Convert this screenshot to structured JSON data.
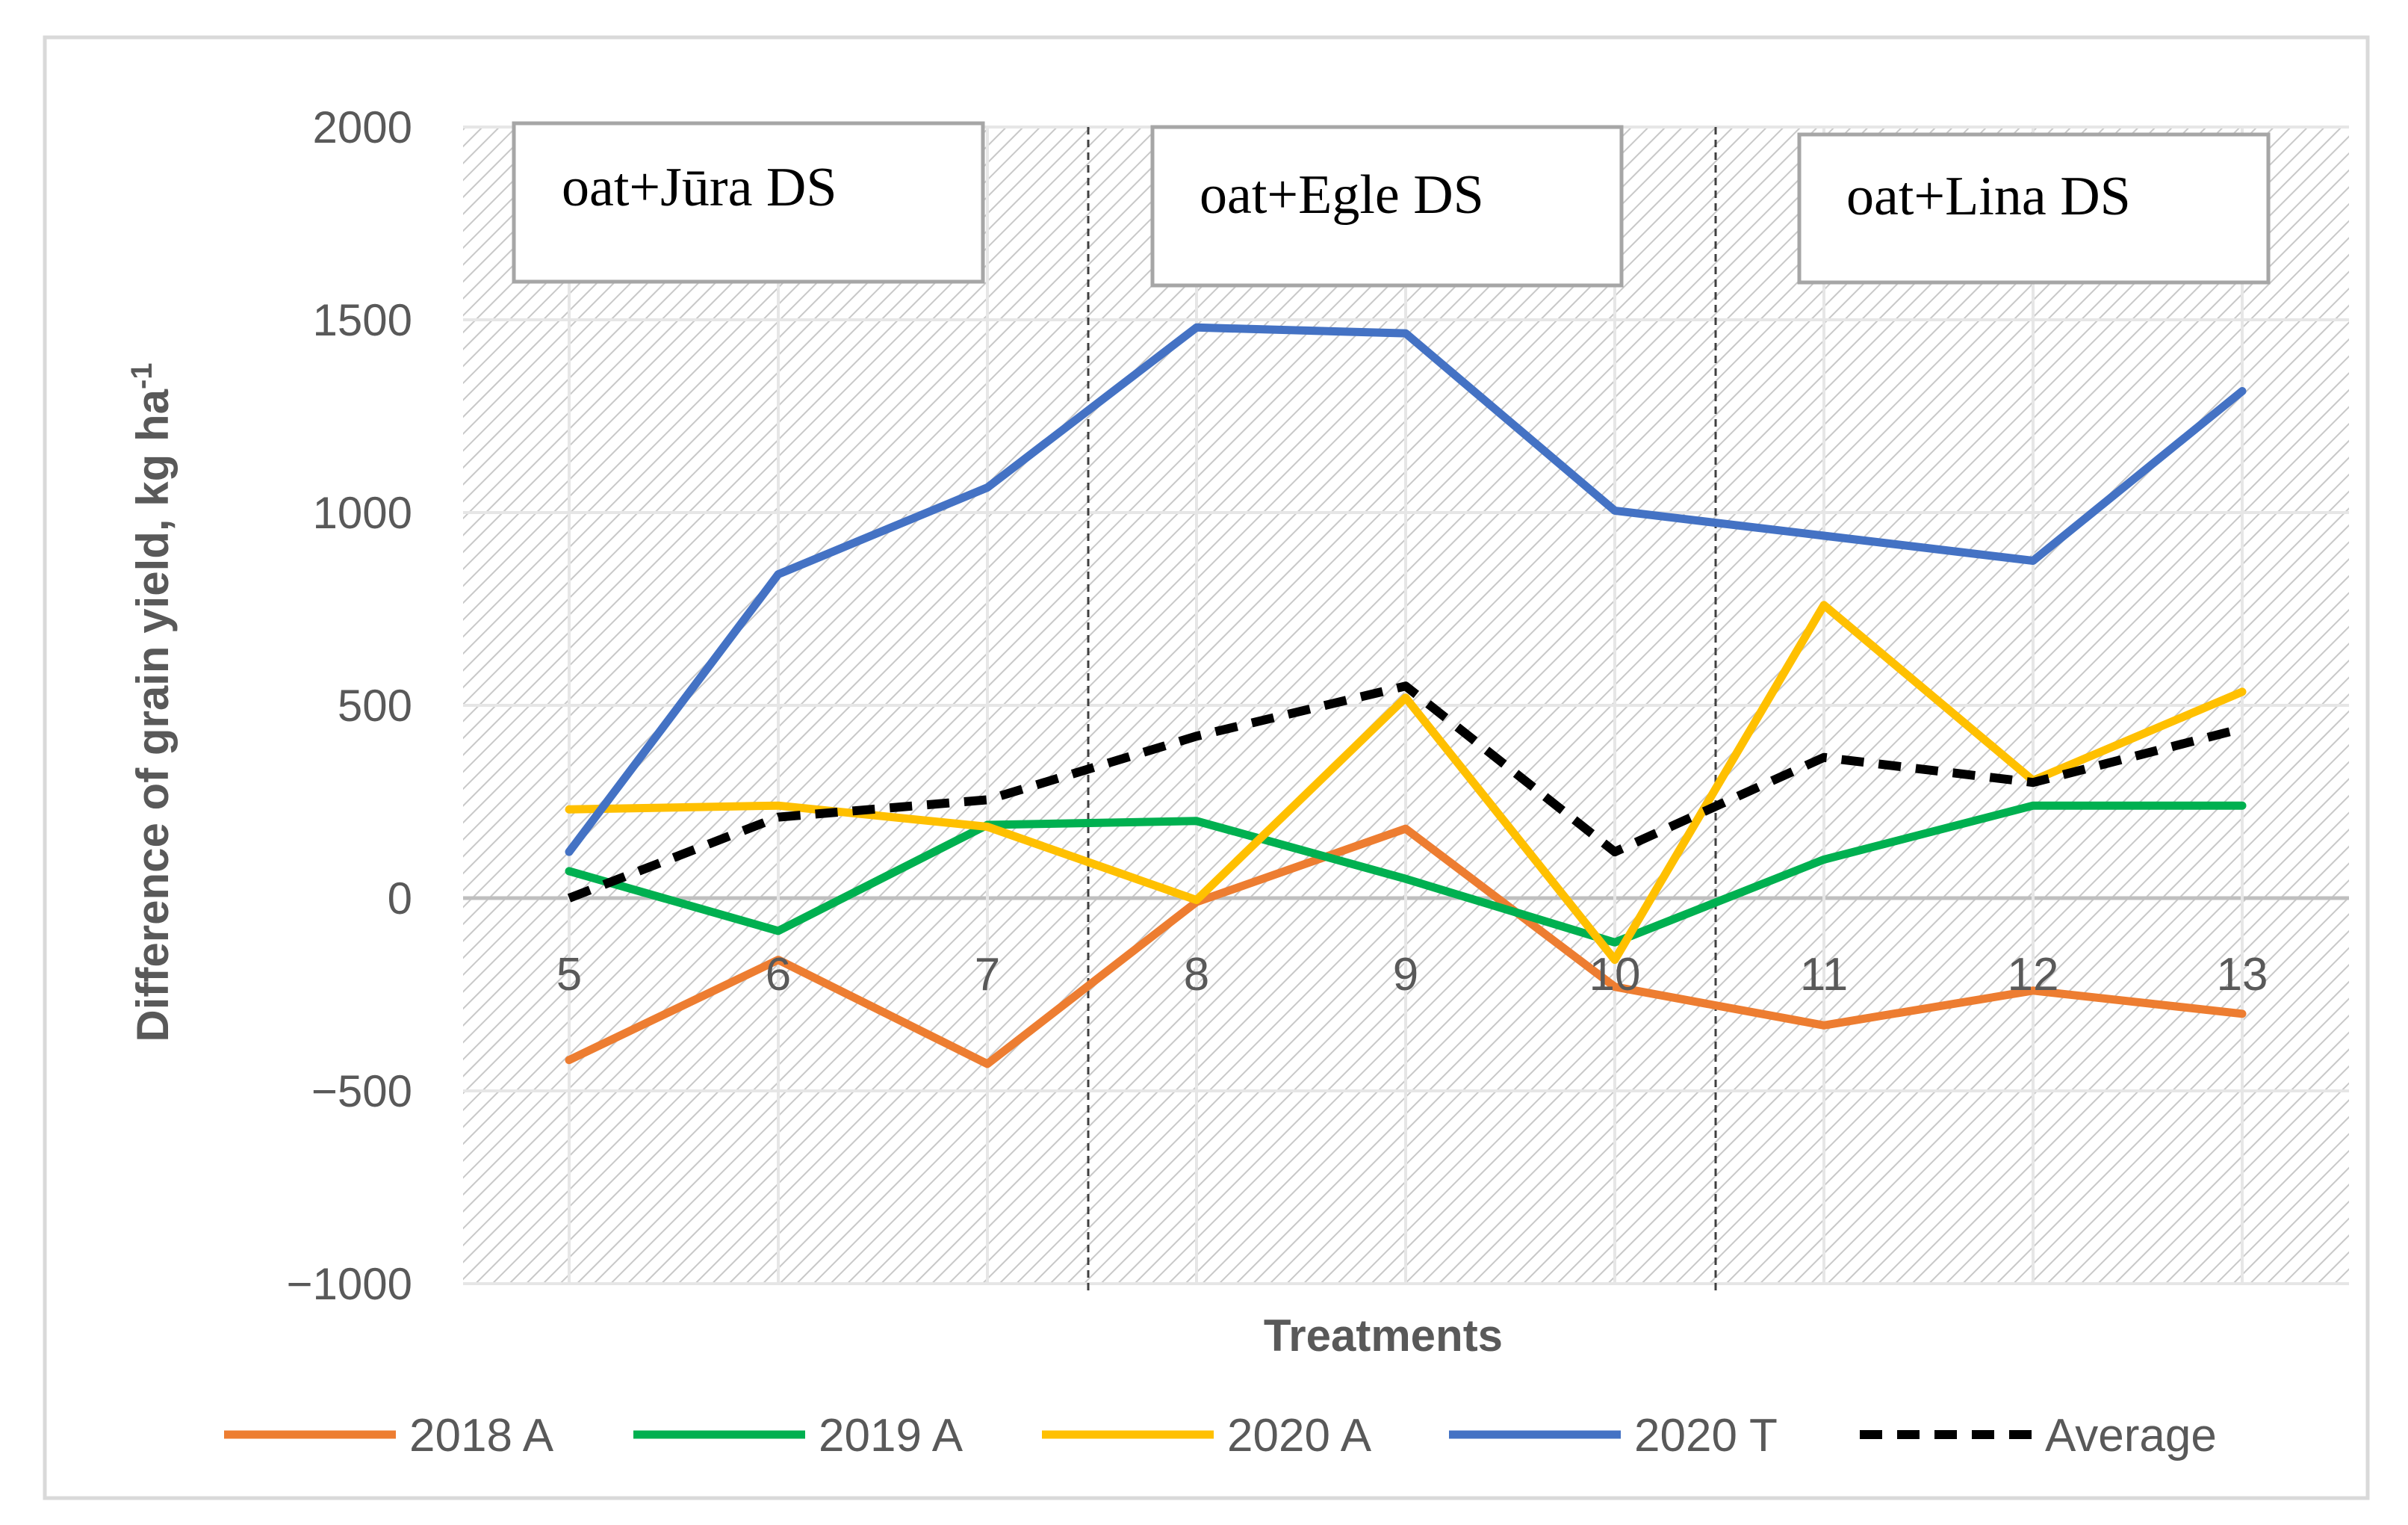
{
  "chart_data": {
    "type": "line",
    "title": "",
    "xlabel": "Treatments",
    "ylabel": "Difference of grain yield, kg ha",
    "ylabel_superscript": "-1",
    "categories": [
      "5",
      "6",
      "7",
      "8",
      "9",
      "10",
      "11",
      "12",
      "13"
    ],
    "ylim": [
      -1000,
      2000
    ],
    "yticks": [
      2000,
      1500,
      1000,
      500,
      0,
      -500,
      -1000
    ],
    "ytick_labels": [
      "2000",
      "1500",
      "1000",
      "500",
      "0",
      "−500",
      "−1000"
    ],
    "grid": true,
    "legend_position": "bottom",
    "groups": [
      {
        "label": "oat+Jūra DS",
        "categories": [
          "5",
          "6",
          "7"
        ]
      },
      {
        "label": "oat+Egle DS",
        "categories": [
          "8",
          "9",
          "10"
        ]
      },
      {
        "label": "oat+Lina DS",
        "categories": [
          "11",
          "12",
          "13"
        ]
      }
    ],
    "series": [
      {
        "name": "2018 A",
        "color": "#ED7D31",
        "style": "solid",
        "values": [
          -420,
          -160,
          -430,
          -10,
          180,
          -230,
          -330,
          -240,
          -300
        ]
      },
      {
        "name": "2019 A",
        "color": "#00B050",
        "style": "solid",
        "values": [
          70,
          -85,
          190,
          200,
          50,
          -115,
          100,
          240,
          240
        ]
      },
      {
        "name": "2020 A",
        "color": "#FFC000",
        "style": "solid",
        "values": [
          230,
          240,
          185,
          -5,
          520,
          -160,
          760,
          305,
          535
        ]
      },
      {
        "name": "2020 T",
        "color": "#4472C4",
        "style": "solid",
        "values": [
          120,
          840,
          1065,
          1480,
          1465,
          1005,
          940,
          875,
          1315
        ]
      },
      {
        "name": "Average",
        "color": "#000000",
        "style": "dashed",
        "values": [
          0,
          210,
          255,
          420,
          550,
          120,
          365,
          300,
          440
        ]
      }
    ]
  }
}
